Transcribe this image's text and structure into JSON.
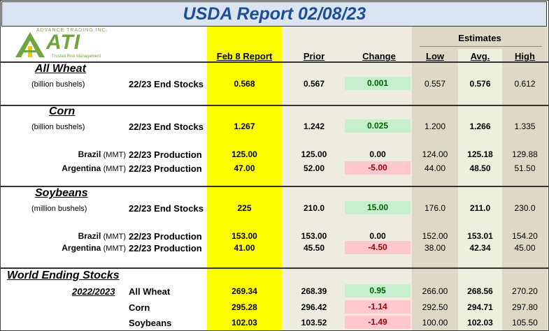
{
  "title": "USDA Report 02/08/23",
  "logo": {
    "name": "ATI",
    "top_text": "ADVANCE TRADING INC.",
    "tagline": "Trusted Risk Management"
  },
  "estimates_label": "Estimates",
  "columns": {
    "report": "Feb 8 Report",
    "prior": "Prior",
    "change": "Change",
    "low": "Low",
    "avg": "Avg.",
    "high": "High"
  },
  "sections": {
    "wheat": {
      "name": "All Wheat",
      "unit": "(billion bushels)",
      "rows": [
        {
          "label": "22/23 End Stocks",
          "report": "0.568",
          "prior": "0.567",
          "change": "0.001",
          "low": "0.557",
          "avg": "0.576",
          "high": "0.612"
        }
      ]
    },
    "corn": {
      "name": "Corn",
      "unit": "(billion bushels)",
      "rows": [
        {
          "label": "22/23 End Stocks",
          "report": "1.267",
          "prior": "1.242",
          "change": "0.025",
          "low": "1.200",
          "avg": "1.266",
          "high": "1.335"
        },
        {
          "country": "Brazil",
          "country_unit": "(MMT)",
          "label": "22/23 Production",
          "report": "125.00",
          "prior": "125.00",
          "change": "0.00",
          "low": "124.00",
          "avg": "125.18",
          "high": "129.88"
        },
        {
          "country": "Argentina",
          "country_unit": "(MMT)",
          "label": "22/23 Production",
          "report": "47.00",
          "prior": "52.00",
          "change": "-5.00",
          "low": "44.00",
          "avg": "48.50",
          "high": "51.50"
        }
      ]
    },
    "soy": {
      "name": "Soybeans",
      "unit": "(million bushels)",
      "rows": [
        {
          "label": "22/23 End Stocks",
          "report": "225",
          "prior": "210.0",
          "change": "15.00",
          "low": "176.0",
          "avg": "211.0",
          "high": "230.0"
        },
        {
          "country": "Brazil",
          "country_unit": "(MMT)",
          "label": "22/23 Production",
          "report": "153.00",
          "prior": "153.00",
          "change": "0.00",
          "low": "152.00",
          "avg": "153.01",
          "high": "154.20"
        },
        {
          "country": "Argentina",
          "country_unit": "(MMT)",
          "label": "22/23 Production",
          "report": "41.00",
          "prior": "45.50",
          "change": "-4.50",
          "low": "38.00",
          "avg": "42.34",
          "high": "45.00"
        }
      ]
    },
    "world": {
      "name": "World Ending Stocks",
      "year": "2022/2023",
      "rows": [
        {
          "label": "All Wheat",
          "report": "269.34",
          "prior": "268.39",
          "change": "0.95",
          "low": "266.00",
          "avg": "268.56",
          "high": "270.20"
        },
        {
          "label": "Corn",
          "report": "295.28",
          "prior": "296.42",
          "change": "-1.14",
          "low": "292.50",
          "avg": "294.71",
          "high": "297.80"
        },
        {
          "label": "Soybeans",
          "report": "102.03",
          "prior": "103.52",
          "change": "-1.49",
          "low": "100.00",
          "avg": "102.03",
          "high": "105.50"
        }
      ]
    }
  },
  "colors": {
    "title_text": "#1f4e99",
    "title_bg": "#dbe5f1",
    "report_col": "#ffff00",
    "prior_col": "#eeece1",
    "estimate_col": "#ddd9c4",
    "avg_col": "#ebf1de",
    "change_pos_bg": "#c6efce",
    "change_pos_text": "#006100",
    "change_neg_bg": "#ffc7ce",
    "change_neg_text": "#9c0006",
    "logo": "#6fa53c"
  }
}
